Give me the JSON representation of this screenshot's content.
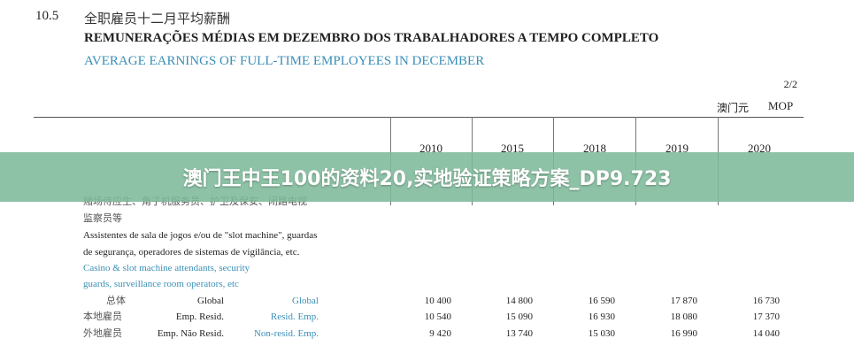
{
  "header": {
    "number": "10.5",
    "title_zh": "全职雇员十二月平均薪酬",
    "title_pt": "REMUNERAÇÕES MÉDIAS EM DEZEMBRO DOS TRABALHADORES A TEMPO COMPLETO",
    "title_en": "AVERAGE EARNINGS OF FULL-TIME EMPLOYEES IN DECEMBER",
    "page": "2/2",
    "unit_zh": "澳门元",
    "unit": "MOP"
  },
  "years": [
    "2010",
    "2015",
    "2018",
    "2019",
    "2020"
  ],
  "category": {
    "zh_1": "赌场侍应生、角子机服务员、护卫及保安、闭路电视",
    "zh_2": "监察员等",
    "pt_1": "Assistentes de sala de jogos e/ou de \"slot machine\", guardas",
    "pt_2": "de segurança, operadores de sistemas de vigilância, etc.",
    "en_1": "Casino & slot machine attendants, security",
    "en_2": "guards, surveillance room operators, etc"
  },
  "rows": [
    {
      "zh": "总体",
      "pt": "Global",
      "en": "Global",
      "values": [
        "10 400",
        "14 800",
        "16 590",
        "17 870",
        "16 730"
      ]
    },
    {
      "zh": "本地雇员",
      "pt": "Emp. Resid.",
      "en": "Resid. Emp.",
      "values": [
        "10 540",
        "15 090",
        "16 930",
        "18 080",
        "17 370"
      ]
    },
    {
      "zh": "外地雇员",
      "pt": "Emp. Não Resid.",
      "en": "Non-resid. Emp.",
      "values": [
        "9 420",
        "13 740",
        "15 030",
        "16 990",
        "14 040"
      ]
    }
  ],
  "banner": {
    "text": "澳门王中王100的资料20,实地验证策略方案_DP9.723"
  }
}
